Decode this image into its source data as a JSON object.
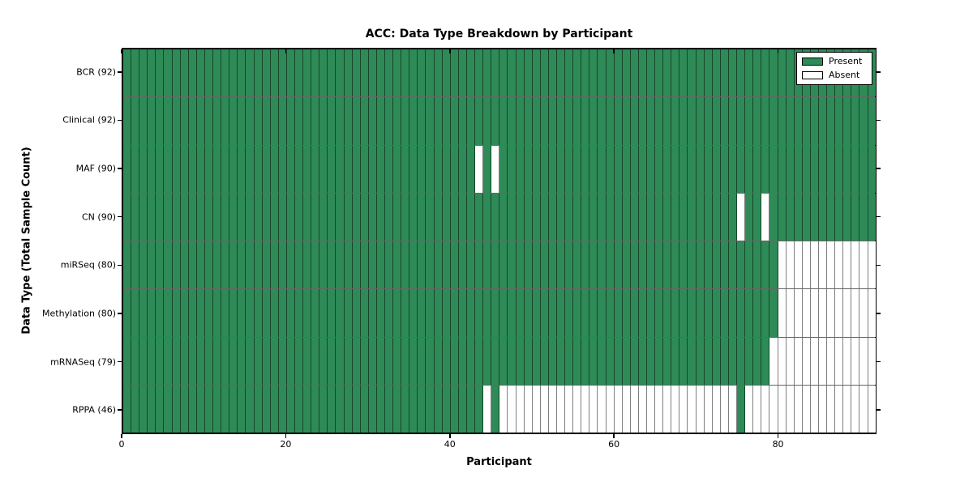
{
  "figure": {
    "background": "#ffffff",
    "spine_color": "#000000"
  },
  "chart_data": {
    "type": "heatmap",
    "title": "ACC: Data Type Breakdown by Participant",
    "xlabel": "Participant",
    "ylabel": "Data Type (Total Sample Count)",
    "x_ticks": [
      0,
      20,
      40,
      60,
      80
    ],
    "x_range": [
      0,
      92
    ],
    "n_participants": 92,
    "grid": false,
    "legend_position": "upper-right",
    "legend": [
      {
        "label": "Present",
        "color": "#2e8b57"
      },
      {
        "label": "Absent",
        "color": "#ffffff"
      }
    ],
    "colors": {
      "present": "#2e8b57",
      "absent": "#ffffff",
      "cell_edge": "rgba(0,0,0,0.5)"
    },
    "rows": [
      {
        "name": "BCR",
        "label": "BCR (92)",
        "present_count": 92,
        "absent_participants": []
      },
      {
        "name": "Clinical",
        "label": "Clinical (92)",
        "present_count": 92,
        "absent_participants": []
      },
      {
        "name": "MAF",
        "label": "MAF (90)",
        "present_count": 90,
        "absent_participants": [
          43,
          45
        ]
      },
      {
        "name": "CN",
        "label": "CN (90)",
        "present_count": 90,
        "absent_participants": [
          75,
          78
        ]
      },
      {
        "name": "miRSeq",
        "label": "miRSeq (80)",
        "present_count": 80,
        "absent_participants": [
          80,
          81,
          82,
          83,
          84,
          85,
          86,
          87,
          88,
          89,
          90,
          91
        ]
      },
      {
        "name": "Methylation",
        "label": "Methylation (80)",
        "present_count": 80,
        "absent_participants": [
          80,
          81,
          82,
          83,
          84,
          85,
          86,
          87,
          88,
          89,
          90,
          91
        ]
      },
      {
        "name": "mRNASeq",
        "label": "mRNASeq (79)",
        "present_count": 79,
        "absent_participants": [
          79,
          80,
          81,
          82,
          83,
          84,
          85,
          86,
          87,
          88,
          89,
          90,
          91
        ]
      },
      {
        "name": "RPPA",
        "label": "RPPA (46)",
        "present_count": 46,
        "absent_participants": [
          44,
          46,
          47,
          48,
          49,
          50,
          51,
          52,
          53,
          54,
          55,
          56,
          57,
          58,
          59,
          60,
          61,
          62,
          63,
          64,
          65,
          66,
          67,
          68,
          69,
          70,
          71,
          72,
          73,
          74,
          76,
          77,
          78,
          79,
          80,
          81,
          82,
          83,
          84,
          85,
          86,
          87,
          88,
          89,
          90,
          91
        ]
      }
    ]
  }
}
